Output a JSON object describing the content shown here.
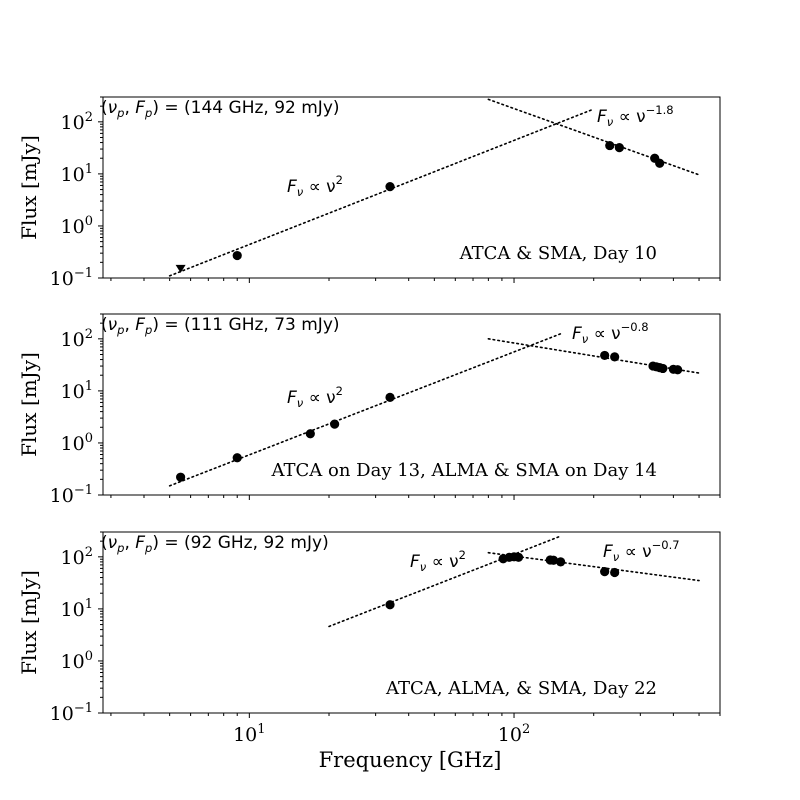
{
  "chart_data": [
    {
      "type": "scatter",
      "ylabel": "Flux [mJy]",
      "xscale": "log",
      "yscale": "log",
      "xlim": [
        2.8,
        600
      ],
      "ylim": [
        0.1,
        300
      ],
      "peak_label": "(ν_p, F_p) = (144 GHz, 92 mJy)",
      "peak_label_parts": [
        "(",
        "ν",
        "p",
        ", ",
        "F",
        "p",
        ") = (144 GHz, 92 mJy)"
      ],
      "dataset_label": "ATCA & SMA, Day 10",
      "fits": [
        {
          "x": [
            5,
            200
          ],
          "y": [
            0.11,
            176
          ],
          "label_base": "F",
          "label_sub": "ν",
          "label_mid": " ∝ ν",
          "label_sup": "2"
        },
        {
          "x": [
            80,
            500
          ],
          "y": [
            270,
            9.6
          ],
          "label_base": "F",
          "label_sub": "ν",
          "label_mid": " ∝ ν",
          "label_sup": "−1.8"
        }
      ],
      "points": [
        {
          "x": 9,
          "y": 0.27
        },
        {
          "x": 34,
          "y": 5.7
        },
        {
          "x": 230,
          "y": 35
        },
        {
          "x": 250,
          "y": 32
        },
        {
          "x": 340,
          "y": 20
        },
        {
          "x": 355,
          "y": 16
        }
      ],
      "upper_limits": [
        {
          "x": 5.5,
          "y": 0.15
        }
      ]
    },
    {
      "type": "scatter",
      "ylabel": "Flux [mJy]",
      "xscale": "log",
      "yscale": "log",
      "xlim": [
        2.8,
        600
      ],
      "ylim": [
        0.1,
        300
      ],
      "peak_label": "(ν_p, F_p) = (111 GHz, 73 mJy)",
      "peak_label_parts": [
        "(",
        "ν",
        "p",
        ", ",
        "F",
        "p",
        ") = (111 GHz, 73 mJy)"
      ],
      "dataset_label": "ATCA on Day 13, ALMA & SMA on Day 14",
      "fits": [
        {
          "x": [
            5,
            150
          ],
          "y": [
            0.15,
            125
          ],
          "label_base": "F",
          "label_sub": "ν",
          "label_mid": " ∝ ν",
          "label_sup": "2"
        },
        {
          "x": [
            80,
            500
          ],
          "y": [
            100,
            22
          ],
          "label_base": "F",
          "label_sub": "ν",
          "label_mid": " ∝ ν",
          "label_sup": "−0.8"
        }
      ],
      "points": [
        {
          "x": 5.5,
          "y": 0.22
        },
        {
          "x": 9,
          "y": 0.52
        },
        {
          "x": 17,
          "y": 1.5
        },
        {
          "x": 21,
          "y": 2.3
        },
        {
          "x": 34,
          "y": 7.5
        },
        {
          "x": 220,
          "y": 48
        },
        {
          "x": 240,
          "y": 45
        },
        {
          "x": 335,
          "y": 30
        },
        {
          "x": 345,
          "y": 29
        },
        {
          "x": 355,
          "y": 28
        },
        {
          "x": 365,
          "y": 27
        },
        {
          "x": 400,
          "y": 26
        },
        {
          "x": 415,
          "y": 25.5
        }
      ],
      "upper_limits": []
    },
    {
      "type": "scatter",
      "ylabel": "Flux [mJy]",
      "xlabel": "Frequency [GHz]",
      "xscale": "log",
      "yscale": "log",
      "xlim": [
        2.8,
        600
      ],
      "ylim": [
        0.1,
        300
      ],
      "peak_label": "(ν_p, F_p) = (92 GHz, 92 mJy)",
      "peak_label_parts": [
        "(",
        "ν",
        "p",
        ", ",
        "F",
        "p",
        ") = (92 GHz, 92 mJy)"
      ],
      "dataset_label": "ATCA, ALMA, & SMA, Day 22",
      "fits": [
        {
          "x": [
            20,
            150
          ],
          "y": [
            4.6,
            250
          ],
          "label_base": "F",
          "label_sub": "ν",
          "label_mid": " ∝ ν",
          "label_sup": "2"
        },
        {
          "x": [
            80,
            500
          ],
          "y": [
            120,
            35
          ],
          "label_base": "F",
          "label_sub": "ν",
          "label_mid": " ∝ ν",
          "label_sup": "−0.7"
        }
      ],
      "points": [
        {
          "x": 34,
          "y": 12
        },
        {
          "x": 91,
          "y": 92
        },
        {
          "x": 96,
          "y": 98
        },
        {
          "x": 100,
          "y": 100
        },
        {
          "x": 104,
          "y": 98
        },
        {
          "x": 137,
          "y": 87
        },
        {
          "x": 141,
          "y": 86
        },
        {
          "x": 150,
          "y": 80
        },
        {
          "x": 220,
          "y": 52
        },
        {
          "x": 240,
          "y": 50
        }
      ],
      "upper_limits": []
    }
  ],
  "axes": {
    "x_ticks": [
      {
        "base": "10",
        "exp": "1",
        "value": 10
      },
      {
        "base": "10",
        "exp": "2",
        "value": 100
      }
    ],
    "y_ticks": [
      {
        "base": "10",
        "exp": "2",
        "value": 100
      },
      {
        "base": "10",
        "exp": "1",
        "value": 10
      },
      {
        "base": "10",
        "exp": "0",
        "value": 1
      },
      {
        "base": "10",
        "exp": "−1",
        "value": 0.1
      }
    ]
  }
}
